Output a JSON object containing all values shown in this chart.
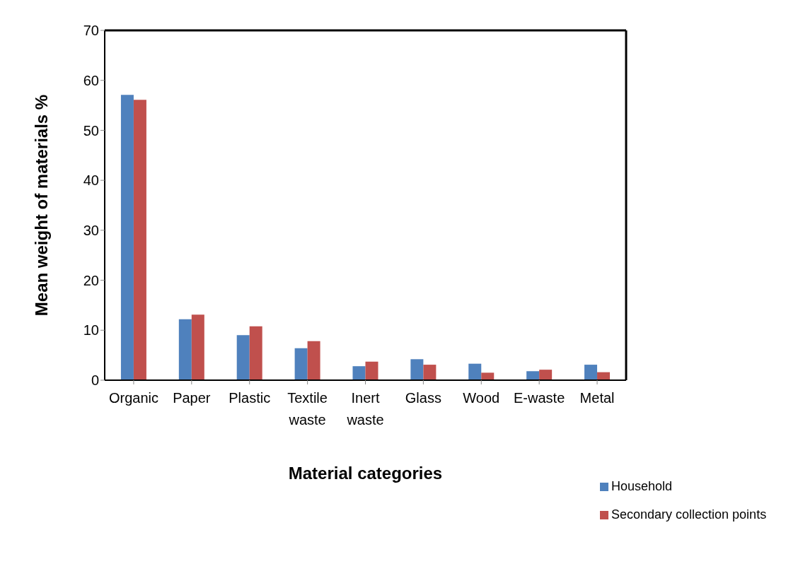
{
  "chart_data": {
    "type": "bar",
    "xlabel": "Material categories",
    "ylabel": "Mean weight of materials %",
    "categories": [
      "Organic",
      "Paper",
      "Plastic",
      "Textile waste",
      "Inert waste",
      "Glass",
      "Wood",
      "E-waste",
      "Metal"
    ],
    "series": [
      {
        "name": "Household",
        "color": "#4f81bd",
        "values": [
          57.1,
          12.2,
          9.0,
          6.4,
          2.8,
          4.2,
          3.3,
          1.8,
          3.1
        ]
      },
      {
        "name": "Secondary collection points",
        "color": "#c0504d",
        "values": [
          56.1,
          13.1,
          10.8,
          7.8,
          3.7,
          3.1,
          1.5,
          2.1,
          1.6
        ]
      }
    ],
    "ylim": [
      0,
      70
    ],
    "yticks": [
      0,
      10,
      20,
      30,
      40,
      50,
      60,
      70
    ],
    "grid": false,
    "legend": "bottom right"
  }
}
